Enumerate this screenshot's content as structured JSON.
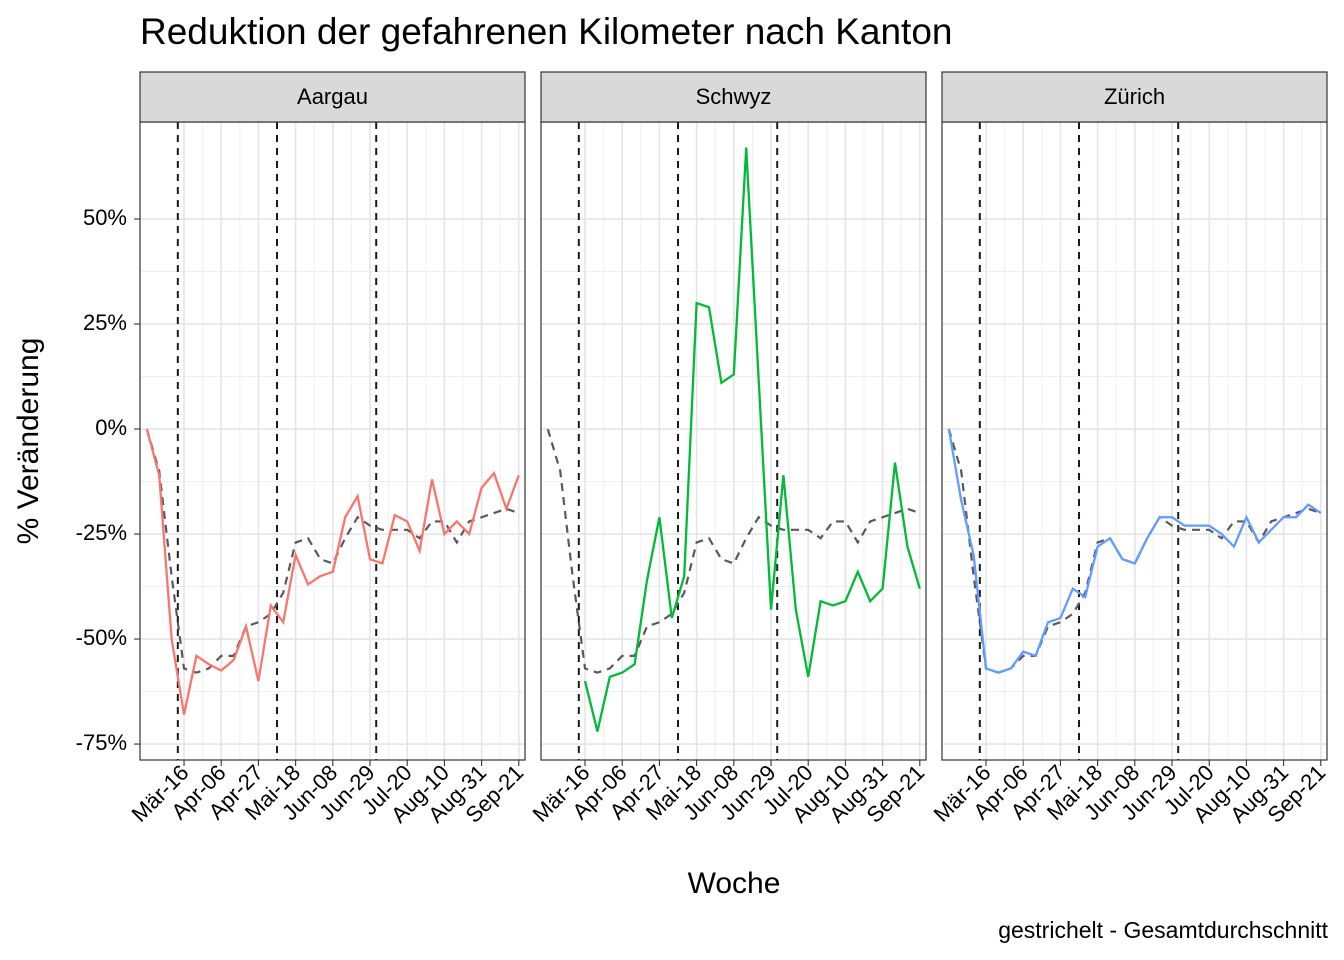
{
  "chart_data": {
    "type": "line",
    "title": "Reduktion der gefahrenen Kilometer nach Kanton",
    "x_label": "Woche",
    "y_label": "% Veränderung",
    "caption": "gestrichelt - Gesamtdurchschnitt",
    "x": [
      0,
      1,
      2,
      3,
      4,
      5,
      6,
      7,
      8,
      9,
      10,
      11,
      12,
      13,
      14,
      15,
      16,
      17,
      18,
      19,
      20,
      21,
      22,
      23,
      24,
      25,
      26,
      27,
      28,
      29,
      30
    ],
    "xlim": [
      -0.55,
      30.5
    ],
    "xticks": [
      {
        "value": 3,
        "label": "Mär-16"
      },
      {
        "value": 6,
        "label": "Apr-06"
      },
      {
        "value": 9,
        "label": "Apr-27"
      },
      {
        "value": 12,
        "label": "Mai-18"
      },
      {
        "value": 15,
        "label": "Jun-08"
      },
      {
        "value": 18,
        "label": "Jun-29"
      },
      {
        "value": 21,
        "label": "Jul-20"
      },
      {
        "value": 24,
        "label": "Aug-10"
      },
      {
        "value": 27,
        "label": "Aug-31"
      },
      {
        "value": 30,
        "label": "Sep-21"
      }
    ],
    "ylim": [
      -78.8,
      73.1
    ],
    "yticks": [
      {
        "value": -75,
        "label": "-75%"
      },
      {
        "value": -50,
        "label": "-50%"
      },
      {
        "value": -25,
        "label": "-25%"
      },
      {
        "value": 0,
        "label": "0%"
      },
      {
        "value": 25,
        "label": "25%"
      },
      {
        "value": 50,
        "label": "50%"
      }
    ],
    "grid": true,
    "vlines": [
      2.5,
      10.5,
      18.5
    ],
    "average": {
      "color": "#595959",
      "values": [
        0,
        -10,
        -35,
        -57,
        -58,
        -57,
        -54,
        -54,
        -47,
        -46,
        -44,
        -39,
        -27,
        -26,
        -31,
        -32,
        -26,
        -21,
        -23,
        -24,
        -24,
        -24,
        -26,
        -22,
        -22,
        -27,
        -22,
        -21,
        -20,
        -19,
        -20
      ]
    },
    "facets": [
      {
        "name": "Aargau",
        "color": "#F8766D",
        "values": [
          0,
          -11,
          -50,
          -68,
          -54,
          -56,
          -57.5,
          -55,
          -47,
          -60,
          -42,
          -46,
          -30,
          -37,
          -35,
          -34,
          -21,
          -16,
          -31,
          -32,
          -20.5,
          -22,
          -29,
          -12,
          -25,
          -22,
          -25,
          -14,
          -10.5,
          -19,
          -11
        ]
      },
      {
        "name": "Schwyz",
        "color": "#00BA38",
        "values": [
          null,
          null,
          null,
          -60,
          -72,
          -59,
          -58,
          -56,
          -36,
          -21,
          -45,
          -35,
          30,
          29,
          11,
          13,
          67,
          12,
          -43,
          -11,
          -43,
          -59,
          -41,
          -42,
          -41,
          -34,
          -41,
          -38,
          -8,
          -28,
          -38
        ]
      },
      {
        "name": "Zürich",
        "color": "#619CFF",
        "values": [
          0,
          -17,
          -30,
          -57,
          -58,
          -57,
          -53,
          -54,
          -46,
          -45,
          -38,
          -40,
          -28,
          -26,
          -31,
          -32,
          -26,
          -21,
          -21,
          -23,
          -23,
          -23,
          -25,
          -28,
          -21,
          -27,
          -24,
          -21,
          -21,
          -18,
          -20
        ]
      }
    ]
  }
}
